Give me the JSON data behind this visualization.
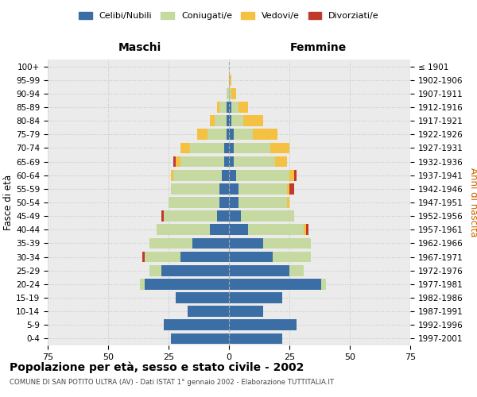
{
  "age_groups": [
    "0-4",
    "5-9",
    "10-14",
    "15-19",
    "20-24",
    "25-29",
    "30-34",
    "35-39",
    "40-44",
    "45-49",
    "50-54",
    "55-59",
    "60-64",
    "65-69",
    "70-74",
    "75-79",
    "80-84",
    "85-89",
    "90-94",
    "95-99",
    "100+"
  ],
  "birth_years": [
    "1997-2001",
    "1992-1996",
    "1987-1991",
    "1982-1986",
    "1977-1981",
    "1972-1976",
    "1967-1971",
    "1962-1966",
    "1957-1961",
    "1952-1956",
    "1947-1951",
    "1942-1946",
    "1937-1941",
    "1932-1936",
    "1927-1931",
    "1922-1926",
    "1917-1921",
    "1912-1916",
    "1907-1911",
    "1902-1906",
    "≤ 1901"
  ],
  "males": {
    "celibi": [
      24,
      27,
      17,
      22,
      35,
      28,
      20,
      15,
      8,
      5,
      4,
      4,
      3,
      2,
      2,
      1,
      1,
      1,
      0,
      0,
      0
    ],
    "coniugati": [
      0,
      0,
      0,
      0,
      2,
      5,
      15,
      18,
      22,
      22,
      21,
      20,
      20,
      18,
      14,
      8,
      5,
      3,
      1,
      0,
      0
    ],
    "vedovi": [
      0,
      0,
      0,
      0,
      0,
      0,
      0,
      0,
      0,
      0,
      0,
      0,
      1,
      2,
      4,
      4,
      2,
      1,
      0,
      0,
      0
    ],
    "divorziati": [
      0,
      0,
      0,
      0,
      0,
      0,
      1,
      0,
      0,
      1,
      0,
      0,
      0,
      1,
      0,
      0,
      0,
      0,
      0,
      0,
      0
    ]
  },
  "females": {
    "nubili": [
      22,
      28,
      14,
      22,
      38,
      25,
      18,
      14,
      8,
      5,
      4,
      4,
      3,
      2,
      2,
      2,
      1,
      1,
      0,
      0,
      0
    ],
    "coniugate": [
      0,
      0,
      0,
      0,
      2,
      6,
      16,
      20,
      23,
      22,
      20,
      20,
      22,
      17,
      15,
      8,
      5,
      3,
      1,
      0,
      0
    ],
    "vedove": [
      0,
      0,
      0,
      0,
      0,
      0,
      0,
      0,
      1,
      0,
      1,
      1,
      2,
      5,
      8,
      10,
      8,
      4,
      2,
      1,
      0
    ],
    "divorziate": [
      0,
      0,
      0,
      0,
      0,
      0,
      0,
      0,
      1,
      0,
      0,
      2,
      1,
      0,
      0,
      0,
      0,
      0,
      0,
      0,
      0
    ]
  },
  "colors": {
    "celibi": "#3a6ea5",
    "coniugati": "#c5d9a0",
    "vedovi": "#f5c142",
    "divorziati": "#c0392b"
  },
  "xlim": 75,
  "title": "Popolazione per età, sesso e stato civile - 2002",
  "subtitle": "COMUNE DI SAN POTITO ULTRA (AV) - Dati ISTAT 1° gennaio 2002 - Elaborazione TUTTITALIA.IT",
  "ylabel_left": "Fasce di età",
  "ylabel_right": "Anni di nascita",
  "label_maschi": "Maschi",
  "label_femmine": "Femmine",
  "legend_labels": [
    "Celibi/Nubili",
    "Coniugati/e",
    "Vedovi/e",
    "Divorziati/e"
  ],
  "bg_color": "#ffffff",
  "grid_color": "#c8c8c8",
  "axes_bg": "#ebebeb"
}
